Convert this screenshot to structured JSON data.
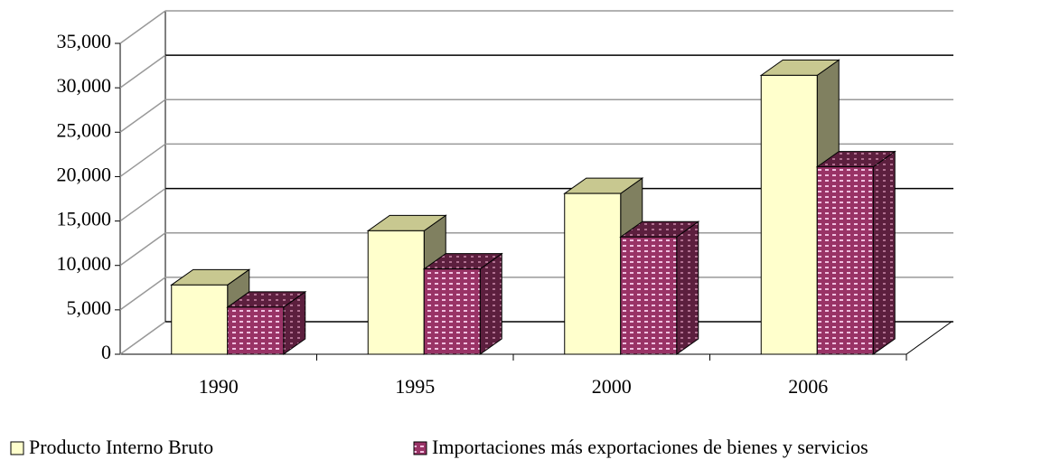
{
  "chart_data": {
    "type": "bar3d",
    "categories": [
      "1990",
      "1995",
      "2000",
      "2006"
    ],
    "series": [
      {
        "name": "Producto Interno Bruto",
        "color": "#ffffcc",
        "values": [
          7800,
          13900,
          18100,
          31400
        ]
      },
      {
        "name": "Importaciones más exportaciones de bienes y servicios",
        "color": "#993366",
        "values": [
          5300,
          9600,
          13200,
          21100
        ]
      }
    ],
    "ylim": [
      0,
      35000
    ],
    "yticks": [
      0,
      {
        "value": 5000,
        "label": "5,000"
      },
      {
        "value": 10000,
        "label": "10,000"
      },
      {
        "value": 15000,
        "label": "15,000"
      },
      {
        "value": 20000,
        "label": "20,000"
      },
      {
        "value": 25000,
        "label": "25,000"
      },
      {
        "value": 30000,
        "label": "30,000"
      },
      {
        "value": 35000,
        "label": "35,000"
      }
    ],
    "grid": true,
    "legend": "bottom"
  }
}
